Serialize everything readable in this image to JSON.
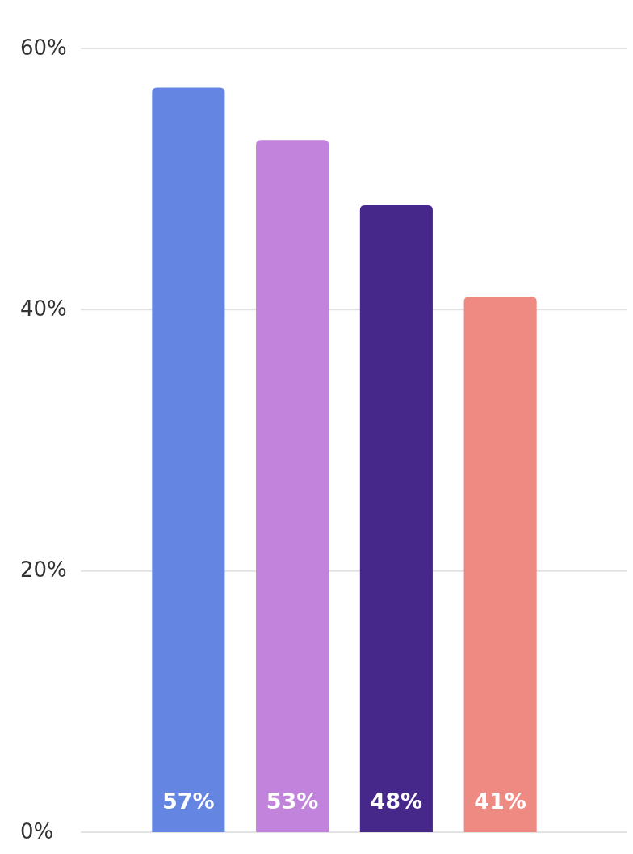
{
  "chart_data": {
    "type": "bar",
    "categories": [
      null,
      null,
      null,
      null
    ],
    "values": [
      57,
      53,
      48,
      41
    ],
    "colors": [
      "#6486e2",
      "#c283dc",
      "#46288a",
      "#ef8a82"
    ],
    "value_labels": [
      "57%",
      "53%",
      "48%",
      "41%"
    ],
    "ylim": [
      0,
      60
    ],
    "yticks": [
      {
        "value": 0,
        "label": "0%"
      },
      {
        "value": 20,
        "label": "20%"
      },
      {
        "value": 40,
        "label": "40%"
      },
      {
        "value": 60,
        "label": "60%"
      }
    ],
    "grid": "y",
    "tick_labels": "y"
  }
}
